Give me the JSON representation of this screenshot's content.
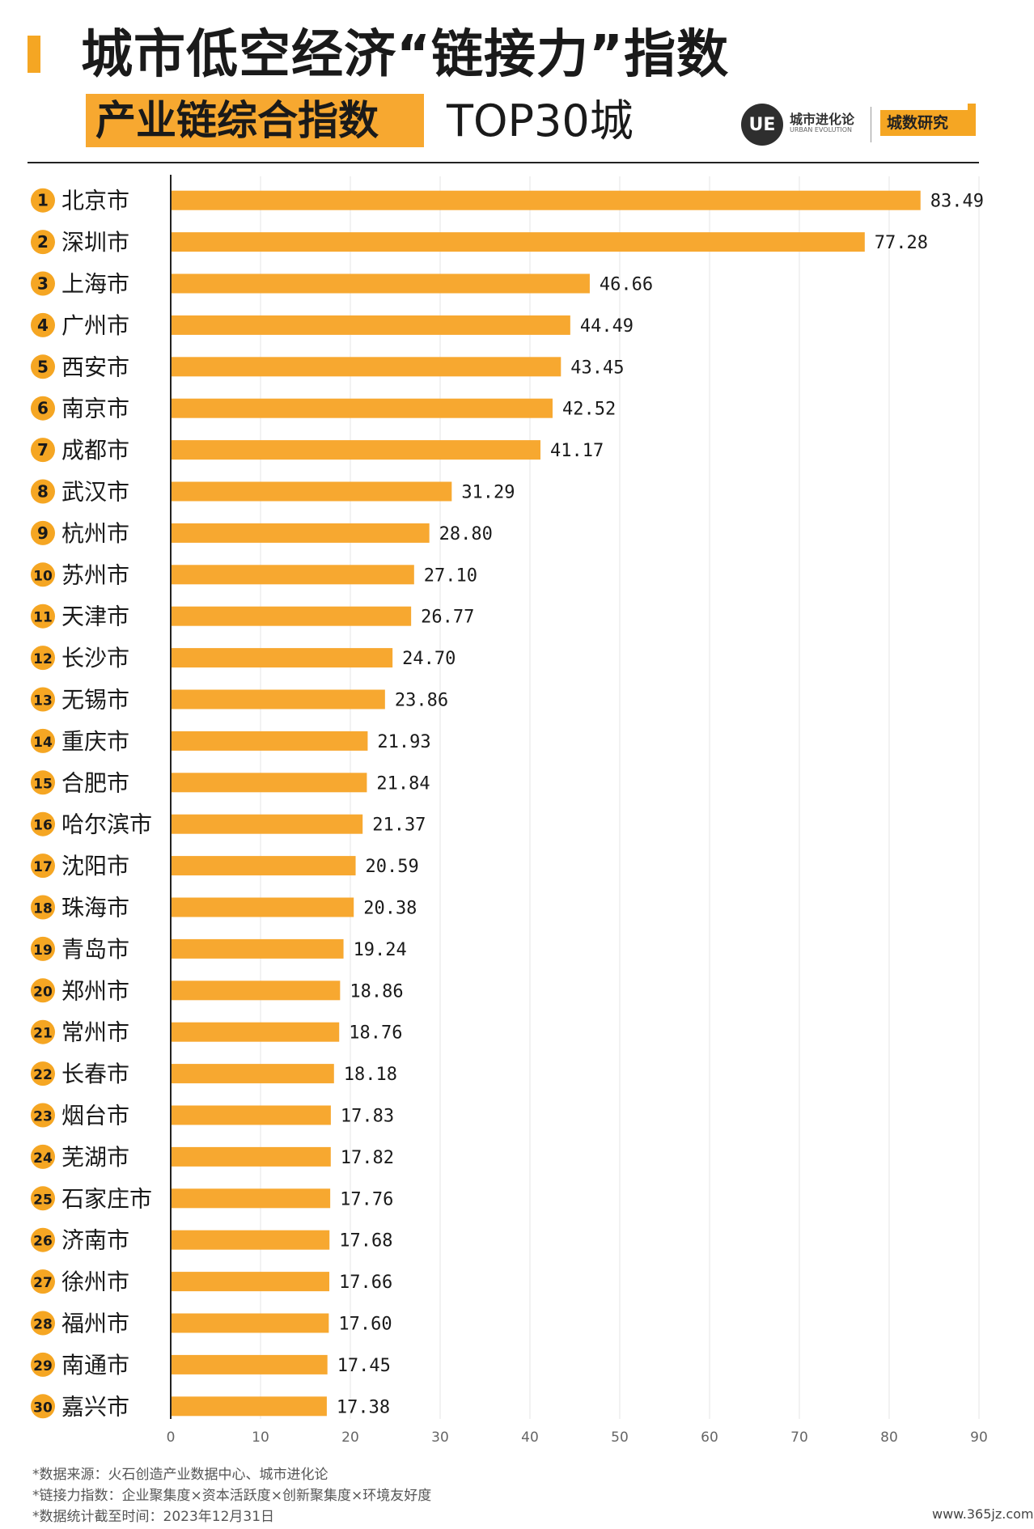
{
  "header": {
    "title": "城市低空经济“链接力”指数",
    "subtitle": "产业链综合指数",
    "subtitle_suffix": "TOP30城",
    "logo_mark": "UE",
    "logo_name": "城市进化论",
    "logo_en": "URBAN EVOLUTION",
    "tag": "城数研究"
  },
  "colors": {
    "bar": "#f7a830",
    "badge": "#f5a623",
    "axis": "#222222"
  },
  "chart_data": {
    "type": "bar",
    "orientation": "horizontal",
    "title": "产业链综合指数 TOP30城",
    "categories": [
      "北京市",
      "深圳市",
      "上海市",
      "广州市",
      "西安市",
      "南京市",
      "成都市",
      "武汉市",
      "杭州市",
      "苏州市",
      "天津市",
      "长沙市",
      "无锡市",
      "重庆市",
      "合肥市",
      "哈尔滨市",
      "沈阳市",
      "珠海市",
      "青岛市",
      "郑州市",
      "常州市",
      "长春市",
      "烟台市",
      "芜湖市",
      "石家庄市",
      "济南市",
      "徐州市",
      "福州市",
      "南通市",
      "嘉兴市"
    ],
    "ranks": [
      "1",
      "2",
      "3",
      "4",
      "5",
      "6",
      "7",
      "8",
      "9",
      "10",
      "11",
      "12",
      "13",
      "14",
      "15",
      "16",
      "17",
      "18",
      "19",
      "20",
      "21",
      "22",
      "23",
      "24",
      "25",
      "26",
      "27",
      "28",
      "29",
      "30"
    ],
    "values": [
      83.49,
      77.28,
      46.66,
      44.49,
      43.45,
      42.52,
      41.17,
      31.29,
      28.8,
      27.1,
      26.77,
      24.7,
      23.86,
      21.93,
      21.84,
      21.37,
      20.59,
      20.38,
      19.24,
      18.86,
      18.76,
      18.18,
      17.83,
      17.82,
      17.76,
      17.68,
      17.66,
      17.6,
      17.45,
      17.38
    ],
    "value_labels": [
      "83.49",
      "77.28",
      "46.66",
      "44.49",
      "43.45",
      "42.52",
      "41.17",
      "31.29",
      "28.80",
      "27.10",
      "26.77",
      "24.70",
      "23.86",
      "21.93",
      "21.84",
      "21.37",
      "20.59",
      "20.38",
      "19.24",
      "18.86",
      "18.76",
      "18.18",
      "17.83",
      "17.82",
      "17.76",
      "17.68",
      "17.66",
      "17.60",
      "17.45",
      "17.38"
    ],
    "xlim": [
      0,
      90
    ],
    "xticks": [
      "0",
      "10",
      "20",
      "30",
      "40",
      "50",
      "60",
      "70",
      "80",
      "90"
    ],
    "grid": true
  },
  "footer": {
    "source": "*数据来源：火石创造产业数据中心、城市进化论",
    "formula": "*链接力指数：企业聚集度×资本活跃度×创新聚集度×环境友好度",
    "cutoff": "*数据统计截至时间：2023年12月31日"
  },
  "watermark": "www.365jz.com"
}
